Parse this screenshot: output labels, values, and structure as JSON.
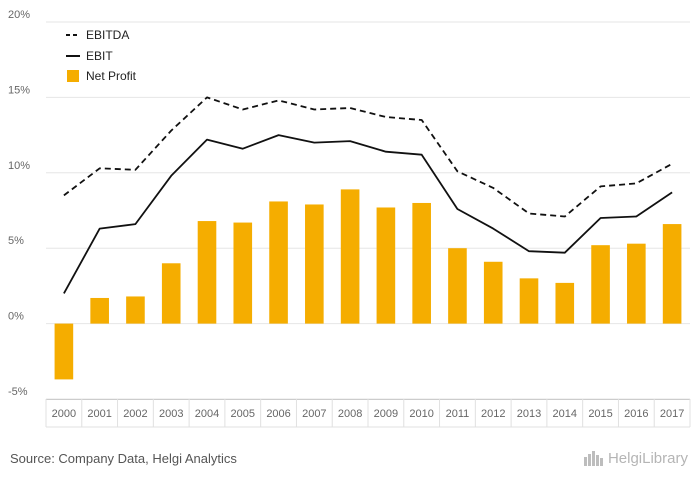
{
  "chart_data": {
    "type": "bar",
    "categories": [
      "2000",
      "2001",
      "2002",
      "2003",
      "2004",
      "2005",
      "2006",
      "2007",
      "2008",
      "2009",
      "2010",
      "2011",
      "2012",
      "2013",
      "2014",
      "2015",
      "2016",
      "2017"
    ],
    "series": [
      {
        "name": "EBITDA",
        "kind": "line",
        "style": "dashed",
        "color": "#111111",
        "values": [
          8.5,
          10.3,
          10.2,
          12.8,
          15.0,
          14.2,
          14.8,
          14.2,
          14.3,
          13.7,
          13.5,
          10.1,
          9.0,
          7.3,
          7.1,
          9.1,
          9.3,
          10.6
        ]
      },
      {
        "name": "EBIT",
        "kind": "line",
        "style": "solid",
        "color": "#111111",
        "values": [
          2.0,
          6.3,
          6.6,
          9.8,
          12.2,
          11.6,
          12.5,
          12.0,
          12.1,
          11.4,
          11.2,
          7.6,
          6.3,
          4.8,
          4.7,
          7.0,
          7.1,
          8.7
        ]
      },
      {
        "name": "Net Profit",
        "kind": "bar",
        "color": "#f5ad00",
        "values": [
          -3.7,
          1.7,
          1.8,
          4.0,
          6.8,
          6.7,
          8.1,
          7.9,
          8.9,
          7.7,
          8.0,
          5.0,
          4.1,
          3.0,
          2.7,
          5.2,
          5.3,
          6.6
        ]
      }
    ],
    "yticks": [
      "20%",
      "15%",
      "10%",
      "5%",
      "0%",
      "-5%"
    ],
    "ylim": [
      -5,
      20
    ],
    "grid": true,
    "legend_position": "top-left",
    "source": "Source: Company Data, Helgi Analytics",
    "logo_text": "HelgiLibrary"
  }
}
